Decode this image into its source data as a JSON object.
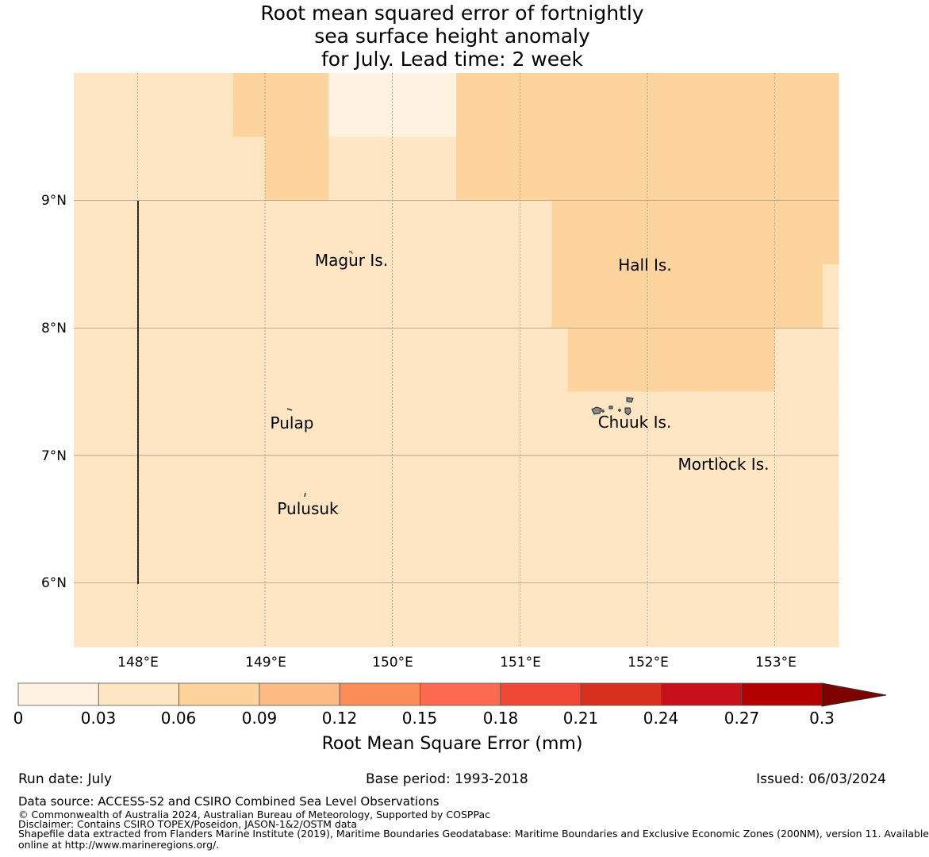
{
  "title": {
    "line1": "Root mean squared error of fortnightly",
    "line2": "sea surface height anomaly",
    "line3": "for July. Lead time: 2 week"
  },
  "map": {
    "lon_ticks": [
      "148°E",
      "149°E",
      "150°E",
      "151°E",
      "152°E",
      "153°E"
    ],
    "lat_ticks": [
      "9°N",
      "8°N",
      "7°N",
      "6°N"
    ],
    "extent": {
      "lon": [
        147.5,
        153.5
      ],
      "lat": [
        5.5,
        10.0
      ]
    },
    "grid_resolution_deg": 0.25,
    "places": [
      {
        "name": "Magur Is.",
        "lon": 149.66,
        "lat": 8.6
      },
      {
        "name": "Hall Is.",
        "lon": 151.97,
        "lat": 8.53
      },
      {
        "name": "Pulap",
        "lon": 149.2,
        "lat": 7.3
      },
      {
        "name": "Chuuk Is.",
        "lon": 151.8,
        "lat": 7.3
      },
      {
        "name": "Mortlock Is.",
        "lon": 152.6,
        "lat": 6.98
      },
      {
        "name": "Pulusuk",
        "lon": 149.33,
        "lat": 6.65
      }
    ],
    "rmse_grid_levels_note": "0 = 0-0.03, 1 = 0.03-0.06, 2 = 0.06-0.09 (rows north to south)",
    "rmse_grid": [
      "111111111122222200000000222222222222222222222222",
      "111111111122222200000000222222222222222222222222",
      "111111111111222211111111222222222222222222222222",
      "111111111111222211111111222222222222222222222222",
      "111111111111111111111111111111222222222222222222",
      "111111111111111111111111111111222222222222222222",
      "111111111111111111111111111111222222222222222221",
      "111111111111111111111111111111222222222222222221",
      "111111111111111111111111111111122222222222221111",
      "111111111111111111111111111111122222222222221111",
      "111111111111111111111111111111111111111111111111",
      "111111111111111111111111111111111111111111111111",
      "111111111111111111111111111111111111111111111111",
      "111111111111111111111111111111111111111111111111",
      "111111111111111111111111111111111111111111111111",
      "111111111111111111111111111111111111111111111111",
      "111111111111111111111111111111111111111111111111",
      "111111111111111111111111111111111111111111111111"
    ]
  },
  "colorbar": {
    "label": "Root Mean Square Error (mm)",
    "ticks": [
      "0",
      "0.03",
      "0.06",
      "0.09",
      "0.12",
      "0.15",
      "0.18",
      "0.21",
      "0.24",
      "0.27",
      "0.3"
    ],
    "colors": [
      "#fff2e0",
      "#fee6c4",
      "#fdd49e",
      "#fdbb84",
      "#fc8d59",
      "#fc6a4f",
      "#f04836",
      "#d7301f",
      "#c8101a",
      "#b30000"
    ],
    "extend_color": "#7f0000"
  },
  "footer": {
    "run_date": "Run date: July",
    "base_period": "Base period: 1993-2018",
    "issued": "Issued: 06/03/2024",
    "data_source": "Data source: ACCESS-S2 and CSIRO Combined Sea Level Observations",
    "copyright": "© Commonwealth of Australia 2024, Australian Bureau of Meteorology, Supported by COSPPac",
    "disclaimer": "Disclaimer: Contains CSIRO TOPEX/Poseidon, JASON-1&2/OSTM data",
    "shapefile_line1": "Shapefile data extracted from Flanders Marine Institute (2019), Maritime Boundaries Geodatabase: Maritime Boundaries and Exclusive Economic Zones (200NM), version 11. Available",
    "shapefile_line2": "online at http://www.marineregions.org/."
  }
}
